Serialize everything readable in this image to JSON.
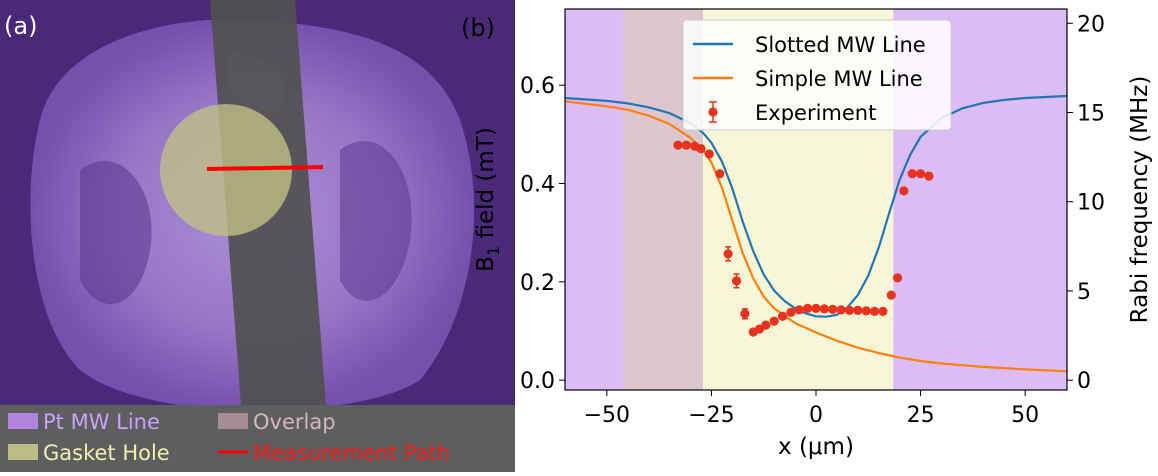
{
  "panel_a": {
    "label": "(a)",
    "legend": [
      {
        "label": "Pt MW Line",
        "color": "#b184e0",
        "text_color": "#c9a2ff",
        "kind": "patch"
      },
      {
        "label": "Overlap",
        "color": "#a68c94",
        "text_color": "#d3b6c4",
        "kind": "patch"
      },
      {
        "label": "Gasket Hole",
        "color": "#bcbc84",
        "text_color": "#f0f0b0",
        "kind": "patch"
      },
      {
        "label": "Measurement Path",
        "color": "#ff0000",
        "text_color": "#ff1a1a",
        "kind": "line"
      }
    ]
  },
  "panel_b": {
    "label": "(b)"
  },
  "chart_data": {
    "type": "line",
    "xlabel": "x (μm)",
    "ylabel": "B",
    "ylabel_sub": "1",
    "ylabel_rest": " field (mT)",
    "ylabel_right": "Rabi frequency (MHz)",
    "xlim": [
      -60,
      60
    ],
    "ylim": [
      -0.02,
      0.755
    ],
    "ylim_right": [
      -0.55,
      20.8
    ],
    "xticks": [
      -50,
      -25,
      0,
      25,
      50
    ],
    "xtick_labels": [
      "−50",
      "−25",
      "0",
      "25",
      "50"
    ],
    "yticks": [
      0.0,
      0.2,
      0.4,
      0.6
    ],
    "ytick_labels": [
      "0.0",
      "0.2",
      "0.4",
      "0.6"
    ],
    "yticks_right": [
      0,
      5,
      10,
      15,
      20
    ],
    "ytick_labels_right": [
      "0",
      "5",
      "10",
      "15",
      "20"
    ],
    "regions": [
      {
        "name": "Pt MW Line",
        "x": [
          -60,
          -46
        ],
        "color": "#dcbcf4"
      },
      {
        "name": "Overlap",
        "x": [
          -46,
          -27
        ],
        "color": "#dcc7cf"
      },
      {
        "name": "Gasket Hole",
        "x": [
          -27,
          18.5
        ],
        "color": "#f7f7d8"
      },
      {
        "name": "Pt MW Line",
        "x": [
          18.5,
          60
        ],
        "color": "#dcbcf4"
      }
    ],
    "legend_position": "top-center",
    "series": [
      {
        "name": "Slotted MW Line",
        "color": "#1f77b4",
        "x": [
          -60,
          -50,
          -45,
          -40,
          -35,
          -30,
          -27,
          -25,
          -22.5,
          -20,
          -17.5,
          -15,
          -12.5,
          -10,
          -7.5,
          -5,
          -2.5,
          0,
          2.5,
          5,
          7.5,
          10,
          12.5,
          15,
          17.5,
          20,
          22.5,
          25,
          30,
          35,
          40,
          45,
          50,
          60
        ],
        "y": [
          0.574,
          0.568,
          0.563,
          0.555,
          0.543,
          0.523,
          0.503,
          0.483,
          0.445,
          0.39,
          0.322,
          0.262,
          0.215,
          0.182,
          0.161,
          0.146,
          0.136,
          0.13,
          0.129,
          0.133,
          0.148,
          0.173,
          0.213,
          0.27,
          0.34,
          0.408,
          0.458,
          0.495,
          0.533,
          0.553,
          0.564,
          0.57,
          0.574,
          0.578
        ]
      },
      {
        "name": "Simple MW Line",
        "color": "#ff7f0e",
        "x": [
          -60,
          -50,
          -45,
          -40,
          -35,
          -30,
          -27,
          -25,
          -22.5,
          -20,
          -17.5,
          -15,
          -12.5,
          -10,
          -5,
          0,
          5,
          10,
          15,
          20,
          25,
          30,
          40,
          50,
          60
        ],
        "y": [
          0.567,
          0.557,
          0.55,
          0.538,
          0.521,
          0.493,
          0.468,
          0.443,
          0.392,
          0.325,
          0.258,
          0.207,
          0.17,
          0.146,
          0.116,
          0.097,
          0.08,
          0.066,
          0.055,
          0.046,
          0.039,
          0.034,
          0.027,
          0.022,
          0.018
        ]
      },
      {
        "name": "Experiment",
        "color": "#e8321e",
        "kind": "scatter",
        "x": [
          -33,
          -31,
          -29,
          -27.5,
          -25.5,
          -23,
          -21,
          -19,
          -17,
          -15,
          -13.5,
          -12,
          -10,
          -8,
          -6,
          -4,
          -2,
          0,
          2,
          4,
          6,
          8,
          10,
          12,
          14,
          16,
          18,
          19.5,
          21,
          23,
          25,
          27
        ],
        "y": [
          0.478,
          0.478,
          0.476,
          0.471,
          0.46,
          0.42,
          0.257,
          0.202,
          0.135,
          0.098,
          0.104,
          0.112,
          0.12,
          0.13,
          0.138,
          0.143,
          0.146,
          0.146,
          0.145,
          0.144,
          0.143,
          0.142,
          0.142,
          0.141,
          0.14,
          0.14,
          0.173,
          0.208,
          0.385,
          0.42,
          0.42,
          0.415
        ],
        "yerr": [
          0.005,
          0.005,
          0.005,
          0.005,
          0.005,
          0.005,
          0.014,
          0.014,
          0.01,
          0.005,
          0.005,
          0.005,
          0.005,
          0.005,
          0.005,
          0.005,
          0.005,
          0.005,
          0.005,
          0.005,
          0.005,
          0.005,
          0.005,
          0.005,
          0.005,
          0.005,
          0.005,
          0.005,
          0.005,
          0.005,
          0.005,
          0.005
        ]
      }
    ]
  }
}
